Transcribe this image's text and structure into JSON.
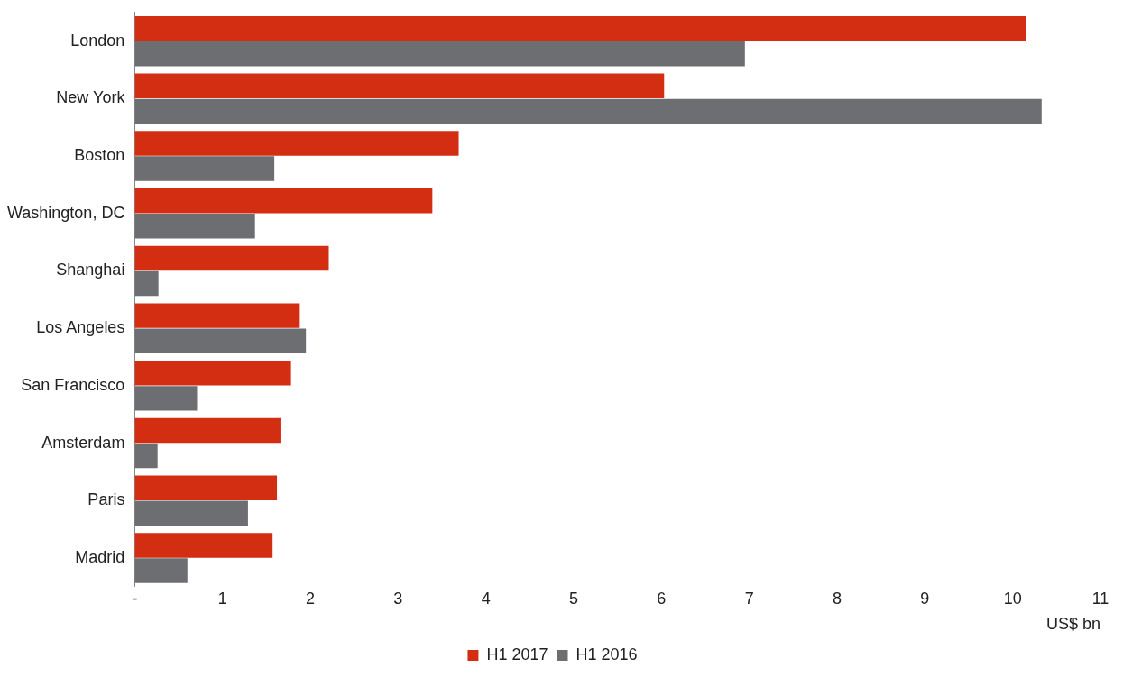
{
  "chart_data": {
    "type": "bar",
    "orientation": "horizontal",
    "categories": [
      "London",
      "New York",
      "Boston",
      "Washington, DC",
      "Shanghai",
      "Los Angeles",
      "San Francisco",
      "Amsterdam",
      "Paris",
      "Madrid"
    ],
    "series": [
      {
        "name": "H1 2017",
        "color": "#d42e12",
        "values": [
          10.15,
          6.03,
          3.69,
          3.39,
          2.21,
          1.88,
          1.78,
          1.66,
          1.62,
          1.57
        ]
      },
      {
        "name": "H1 2016",
        "color": "#6d6e71",
        "values": [
          6.95,
          10.33,
          1.59,
          1.37,
          0.27,
          1.95,
          0.71,
          0.26,
          1.29,
          0.6
        ]
      }
    ],
    "xlim": [
      0,
      11
    ],
    "xticks": [
      {
        "value": 0,
        "label": "-"
      },
      1,
      2,
      3,
      4,
      5,
      6,
      7,
      8,
      9,
      10,
      11
    ],
    "xlabel": "US$ bn",
    "grid": false,
    "legend": "bottom"
  }
}
